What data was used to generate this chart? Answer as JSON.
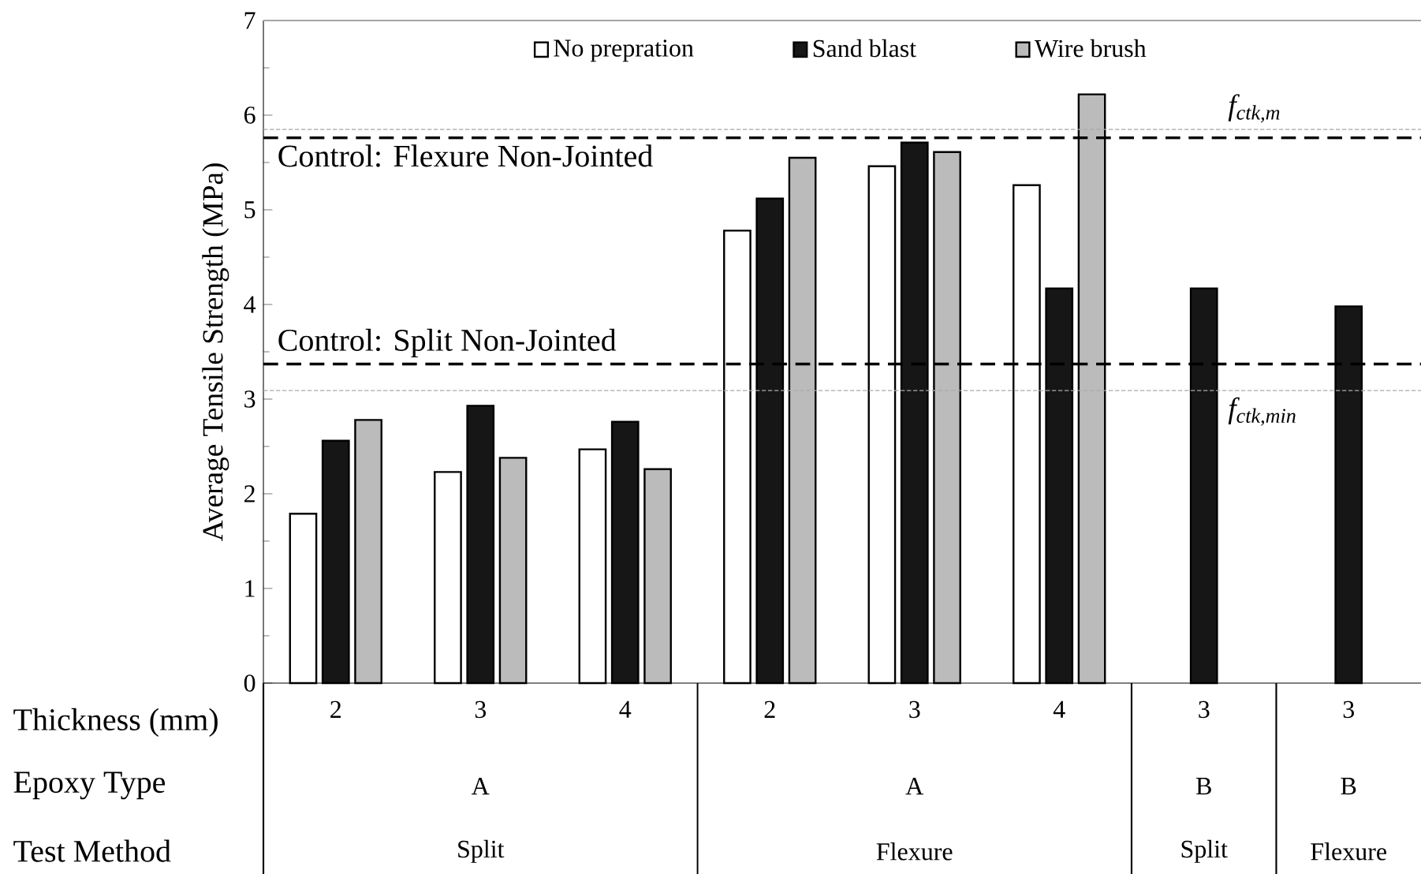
{
  "chart_data": {
    "type": "bar",
    "ylabel": "Average Tensile Strength (MPa)",
    "categories": [
      "2",
      "3",
      "4",
      "2",
      "3",
      "4",
      "3",
      "3"
    ],
    "series": [
      {
        "name": "No prepration",
        "color": "#ffffff",
        "values": [
          1.79,
          2.23,
          2.47,
          4.78,
          5.46,
          5.26,
          null,
          null
        ]
      },
      {
        "name": "Sand blast",
        "color": "#161616",
        "values": [
          2.56,
          2.93,
          2.76,
          5.12,
          5.71,
          4.17,
          4.17,
          3.98
        ]
      },
      {
        "name": "Wire brush",
        "color": "#bbbbbb",
        "values": [
          2.78,
          2.38,
          2.26,
          5.55,
          5.61,
          6.22,
          null,
          null
        ]
      }
    ],
    "ylim": [
      0,
      7
    ],
    "yticks": [
      0,
      1,
      2,
      3,
      4,
      5,
      6,
      7
    ],
    "ref_lines": [
      {
        "axis": "y",
        "value": 5.76,
        "label": "Control: Flexure Non-Jointed",
        "color": "#000000",
        "line_style": "dashed"
      },
      {
        "axis": "y",
        "value": 3.37,
        "label": "Control: Split Non-Jointed",
        "color": "#000000",
        "line_style": "dashed"
      },
      {
        "axis": "y",
        "value": 5.85,
        "label": "*f*$_{ctk,m}$",
        "color": "#aaaaaa",
        "line_style": "dotted"
      },
      {
        "axis": "y",
        "value": 3.09,
        "label": "*f*$_{ctk,min}$",
        "color": "#aaaaaa",
        "line_style": "dotted"
      }
    ],
    "annotations": [
      "Thickness (mm)",
      "Epoxy Type",
      "Test Method",
      "A",
      "A",
      "B",
      "B",
      "Split",
      "Flexure",
      "Split",
      "Flexure"
    ],
    "legend": "top",
    "grid": false
  }
}
